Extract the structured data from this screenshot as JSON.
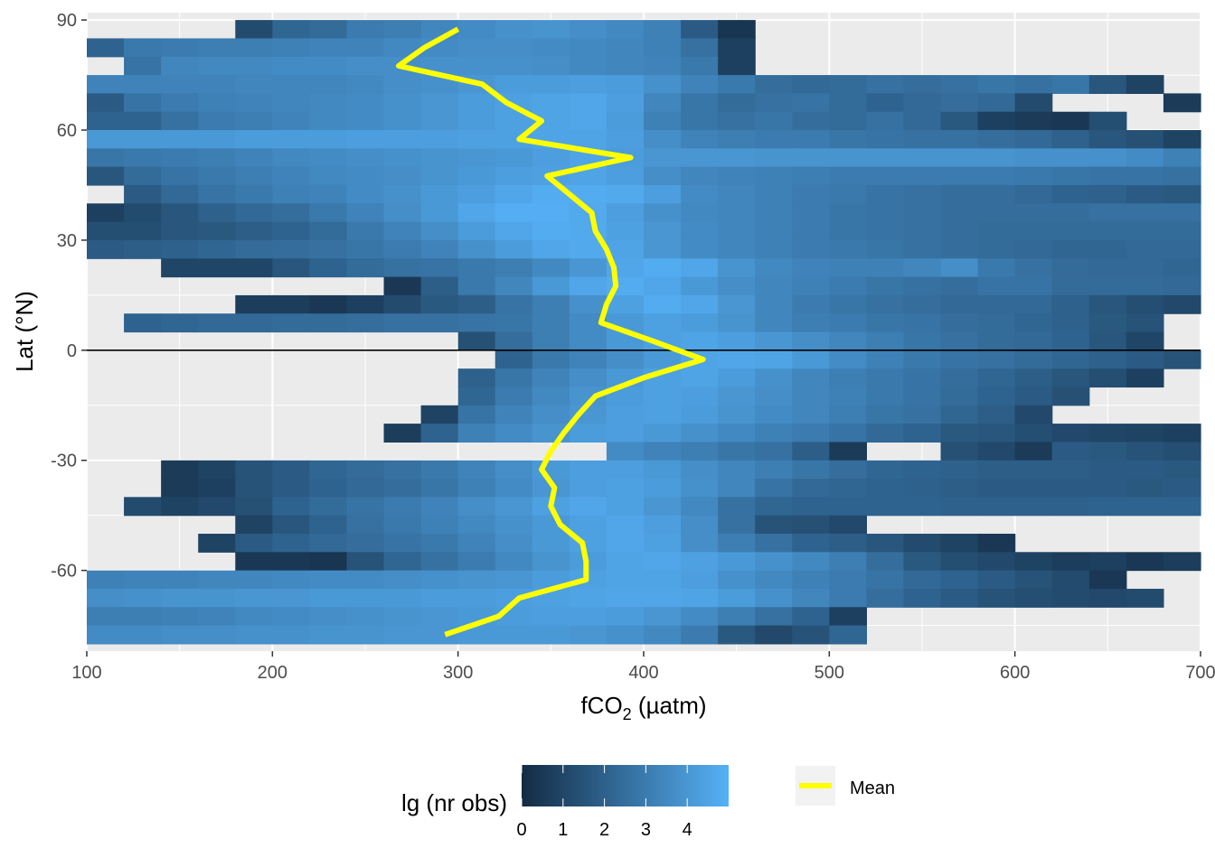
{
  "chart_data": {
    "type": "heatmap",
    "xlabel": "fCO",
    "xlabel_sub": "2",
    "xlabel_unit": " (µatm)",
    "ylabel": "Lat (°N)",
    "xlim": [
      100,
      700
    ],
    "ylim": [
      -82,
      92
    ],
    "x_ticks": [
      100,
      200,
      300,
      400,
      500,
      600,
      700
    ],
    "x_tick_labels": [
      "100",
      "200",
      "300",
      "400",
      "500",
      "600",
      "700"
    ],
    "y_ticks": [
      90,
      60,
      30,
      0,
      -30,
      -60
    ],
    "y_tick_labels": [
      "90",
      "60",
      "30",
      "0",
      "-30",
      "-60"
    ],
    "x_bin_start": 100,
    "x_bin_width": 20,
    "lat_bin_width": 5,
    "grid": true,
    "background_color": "#ebebeb",
    "gridline_color": "#ffffff",
    "reference_line": {
      "y": 0,
      "color": "#000000"
    },
    "fill_scale": {
      "title": "lg (nr obs)",
      "low_color": "#132b43",
      "high_color": "#56b1f7",
      "min": 0,
      "max": 5,
      "ticks": [
        0,
        1,
        2,
        3,
        4
      ],
      "tick_labels": [
        "0",
        "1",
        "2",
        "3",
        "4"
      ]
    },
    "mean_series": {
      "name": "Mean",
      "color": "#ffff00",
      "points": [
        {
          "lat": 87.5,
          "fco2": 300
        },
        {
          "lat": 82.5,
          "fco2": 282
        },
        {
          "lat": 77.5,
          "fco2": 268
        },
        {
          "lat": 72.5,
          "fco2": 313
        },
        {
          "lat": 67.5,
          "fco2": 326
        },
        {
          "lat": 62.5,
          "fco2": 345
        },
        {
          "lat": 57.5,
          "fco2": 333
        },
        {
          "lat": 52.5,
          "fco2": 393
        },
        {
          "lat": 47.5,
          "fco2": 348
        },
        {
          "lat": 42.5,
          "fco2": 360
        },
        {
          "lat": 37.5,
          "fco2": 372
        },
        {
          "lat": 32.5,
          "fco2": 374
        },
        {
          "lat": 27.5,
          "fco2": 380
        },
        {
          "lat": 22.5,
          "fco2": 384
        },
        {
          "lat": 17.5,
          "fco2": 385
        },
        {
          "lat": 12.5,
          "fco2": 380
        },
        {
          "lat": 7.5,
          "fco2": 377
        },
        {
          "lat": 2.5,
          "fco2": 405
        },
        {
          "lat": -2.5,
          "fco2": 432
        },
        {
          "lat": -7.5,
          "fco2": 400
        },
        {
          "lat": -12.5,
          "fco2": 374
        },
        {
          "lat": -17.5,
          "fco2": 365
        },
        {
          "lat": -22.5,
          "fco2": 357
        },
        {
          "lat": -27.5,
          "fco2": 350
        },
        {
          "lat": -32.5,
          "fco2": 345
        },
        {
          "lat": -37.5,
          "fco2": 352
        },
        {
          "lat": -42.5,
          "fco2": 350
        },
        {
          "lat": -47.5,
          "fco2": 355
        },
        {
          "lat": -52.5,
          "fco2": 367
        },
        {
          "lat": -57.5,
          "fco2": 369
        },
        {
          "lat": -62.5,
          "fco2": 369
        },
        {
          "lat": -67.5,
          "fco2": 333
        },
        {
          "lat": -72.5,
          "fco2": 322
        },
        {
          "lat": -77.5,
          "fco2": 293
        }
      ]
    },
    "cells_note": "rows: lat band centre, start = first bin start fCO2 (µatm), v = lg(nr obs) per 20-µatm bin, null = empty",
    "rows": [
      {
        "lat": 87.5,
        "start": 180,
        "v": [
          1.2,
          2.2,
          2.4,
          3.0,
          3.1,
          3.4,
          3.6,
          3.8,
          3.9,
          3.7,
          3.5,
          3.2,
          1.8,
          0.4
        ]
      },
      {
        "lat": 82.5,
        "start": 100,
        "v": [
          2.1,
          2.9,
          3.0,
          3.1,
          3.1,
          3.2,
          3.3,
          3.3,
          3.5,
          3.6,
          3.7,
          3.7,
          3.6,
          3.5,
          3.4,
          3.2,
          2.6,
          0.8
        ]
      },
      {
        "lat": 77.5,
        "start": 120,
        "v": [
          2.7,
          3.4,
          3.5,
          3.5,
          3.6,
          3.6,
          3.7,
          3.7,
          3.8,
          3.8,
          3.8,
          3.7,
          3.5,
          3.4,
          3.3,
          2.9,
          0.8
        ]
      },
      {
        "lat": 72.5,
        "start": 100,
        "v": [
          3.3,
          3.3,
          3.3,
          3.3,
          3.4,
          3.4,
          3.4,
          3.5,
          3.7,
          3.8,
          4.0,
          4.2,
          4.2,
          4.3,
          4.2,
          3.8,
          3.3,
          2.9,
          2.5,
          2.3,
          2.4,
          2.6,
          2.5,
          2.6,
          2.8,
          2.6,
          2.8,
          1.6,
          0.9
        ]
      },
      {
        "lat": 67.5,
        "start": 100,
        "v": [
          1.8,
          2.7,
          3.0,
          3.2,
          3.3,
          3.4,
          3.5,
          3.6,
          3.8,
          4.0,
          4.2,
          4.4,
          4.5,
          4.6,
          4.3,
          3.4,
          2.8,
          2.4,
          2.6,
          2.7,
          2.4,
          2.1,
          2.3,
          2.5,
          2.3,
          1.2,
          null,
          null,
          null,
          0.6,
          0.7
        ]
      },
      {
        "lat": 62.5,
        "start": 100,
        "v": [
          2.1,
          2.1,
          2.6,
          3.0,
          3.1,
          3.3,
          3.5,
          3.6,
          3.8,
          4.0,
          4.2,
          4.4,
          4.5,
          4.6,
          4.2,
          3.2,
          2.8,
          2.6,
          2.8,
          2.5,
          2.4,
          2.6,
          2.3,
          1.7,
          0.8,
          0.6,
          0.5,
          1.3
        ]
      },
      {
        "lat": 57.5,
        "start": 100,
        "v": [
          4.1,
          4.1,
          4.1,
          4.1,
          4.2,
          4.2,
          4.2,
          4.3,
          4.3,
          4.3,
          4.4,
          4.4,
          4.5,
          4.5,
          4.3,
          3.7,
          3.3,
          3.1,
          3.0,
          3.0,
          2.8,
          2.7,
          2.6,
          2.6,
          2.5,
          2.3,
          2.0,
          1.6,
          1.4,
          0.9,
          0.6
        ]
      },
      {
        "lat": 52.5,
        "start": 100,
        "v": [
          2.8,
          2.9,
          3.0,
          3.1,
          3.3,
          3.5,
          3.6,
          3.7,
          3.8,
          3.9,
          4.0,
          4.1,
          4.3,
          4.5,
          4.2,
          4.0,
          4.0,
          4.0,
          3.9,
          3.9,
          3.9,
          3.9,
          3.9,
          3.9,
          3.9,
          3.8,
          3.8,
          3.8,
          3.6,
          3.2,
          3.2
        ]
      },
      {
        "lat": 47.5,
        "start": 100,
        "v": [
          1.6,
          2.4,
          2.7,
          2.9,
          3.1,
          3.3,
          3.5,
          3.6,
          3.7,
          3.9,
          4.1,
          4.3,
          4.4,
          4.5,
          4.3,
          3.7,
          3.4,
          3.3,
          3.2,
          3.1,
          3.0,
          3.0,
          3.0,
          3.0,
          3.0,
          2.9,
          2.8,
          2.7,
          2.7,
          2.6,
          2.5
        ]
      },
      {
        "lat": 42.5,
        "start": 120,
        "v": [
          1.8,
          2.3,
          2.7,
          2.9,
          3.2,
          3.3,
          3.6,
          3.8,
          4.1,
          4.3,
          4.6,
          4.8,
          4.8,
          4.7,
          4.3,
          3.6,
          3.4,
          3.2,
          3.0,
          2.9,
          2.7,
          2.6,
          2.5,
          2.5,
          2.3,
          2.1,
          2.0,
          1.8,
          1.7,
          1.5
        ]
      },
      {
        "lat": 37.5,
        "start": 100,
        "v": [
          0.8,
          1.2,
          1.6,
          2.0,
          2.3,
          2.5,
          2.9,
          3.3,
          3.7,
          4.1,
          4.6,
          4.9,
          4.9,
          4.7,
          4.3,
          3.8,
          3.5,
          3.4,
          3.2,
          3.0,
          2.8,
          2.7,
          2.6,
          2.5,
          2.5,
          2.5,
          2.5,
          2.6,
          2.6,
          2.6,
          2.7
        ]
      },
      {
        "lat": 32.5,
        "start": 100,
        "v": [
          1.3,
          1.3,
          1.6,
          1.7,
          1.9,
          2.1,
          2.4,
          2.9,
          3.3,
          3.7,
          4.2,
          4.6,
          4.8,
          4.7,
          4.4,
          4.0,
          3.6,
          3.4,
          3.2,
          3.0,
          2.8,
          2.7,
          2.6,
          2.5,
          2.4,
          2.4,
          2.4,
          2.4,
          2.4,
          2.4,
          2.4
        ]
      },
      {
        "lat": 27.5,
        "start": 100,
        "v": [
          1.8,
          1.9,
          2.0,
          2.2,
          2.4,
          2.5,
          2.6,
          2.8,
          3.0,
          3.3,
          3.8,
          4.2,
          4.6,
          4.7,
          4.5,
          4.0,
          3.6,
          3.4,
          3.2,
          3.0,
          2.9,
          2.8,
          2.6,
          2.5,
          2.4,
          2.3,
          2.2,
          2.2,
          2.3,
          2.3,
          2.2
        ]
      },
      {
        "lat": 22.5,
        "start": 140,
        "v": [
          1.0,
          1.0,
          1.0,
          1.6,
          2.1,
          2.4,
          2.6,
          2.7,
          2.9,
          3.1,
          3.5,
          4.0,
          4.6,
          4.8,
          4.6,
          3.9,
          3.5,
          3.3,
          3.2,
          3.2,
          3.4,
          3.7,
          2.9,
          2.6,
          2.4,
          2.3,
          2.3,
          2.2,
          2.1
        ]
      },
      {
        "lat": 17.5,
        "start": 260,
        "v": [
          0.5,
          1.9,
          2.9,
          3.4,
          4.1,
          4.6,
          4.8,
          4.6,
          4.1,
          3.7,
          3.4,
          3.2,
          3.0,
          2.8,
          2.6,
          2.5,
          2.7,
          2.7,
          2.4,
          2.4,
          2.4,
          2.3
        ]
      },
      {
        "lat": 12.5,
        "start": 180,
        "v": [
          0.7,
          0.7,
          0.5,
          0.8,
          1.2,
          1.7,
          1.9,
          2.7,
          3.1,
          3.8,
          4.4,
          4.8,
          4.6,
          4.0,
          3.4,
          3.0,
          2.8,
          2.6,
          2.5,
          2.3,
          2.3,
          2.3,
          2.0,
          1.6,
          1.3,
          1.1
        ]
      },
      {
        "lat": 7.5,
        "start": 120,
        "v": [
          2.1,
          2.2,
          2.3,
          2.3,
          2.4,
          2.4,
          2.5,
          2.6,
          2.6,
          2.7,
          2.8,
          3.1,
          3.6,
          4.1,
          4.4,
          4.2,
          3.9,
          3.4,
          3.1,
          3.0,
          2.8,
          2.7,
          2.5,
          2.4,
          2.2,
          2.0,
          1.7,
          1.5,
          null,
          0.6
        ]
      },
      {
        "lat": 2.5,
        "start": 300,
        "v": [
          1.4,
          2.5,
          3.1,
          3.6,
          4.1,
          4.4,
          4.5,
          4.3,
          4.0,
          3.7,
          3.4,
          3.1,
          2.8,
          2.6,
          2.4,
          2.3,
          2.1,
          1.6,
          1.0
        ]
      },
      {
        "lat": -2.5,
        "start": 320,
        "v": [
          2.1,
          2.9,
          3.3,
          3.7,
          4.1,
          4.5,
          4.6,
          4.5,
          4.1,
          3.6,
          3.2,
          2.9,
          2.7,
          2.6,
          2.4,
          2.2,
          2.0,
          1.8,
          1.5,
          1.9,
          1.3,
          0.9
        ]
      },
      {
        "lat": -7.5,
        "start": 300,
        "v": [
          2.0,
          2.8,
          3.3,
          3.7,
          4.1,
          4.4,
          4.5,
          4.2,
          3.8,
          3.4,
          3.1,
          2.9,
          2.7,
          2.5,
          2.2,
          1.9,
          1.6,
          1.3,
          0.8
        ]
      },
      {
        "lat": -12.5,
        "start": 300,
        "v": [
          2.2,
          3.0,
          3.5,
          3.9,
          4.2,
          4.4,
          4.3,
          4.0,
          3.7,
          3.4,
          3.2,
          2.9,
          2.7,
          2.4,
          2.1,
          1.8,
          1.4
        ]
      },
      {
        "lat": -17.5,
        "start": 280,
        "v": [
          0.9,
          2.7,
          3.3,
          3.7,
          4.0,
          4.3,
          4.4,
          4.2,
          3.9,
          3.6,
          3.4,
          3.1,
          2.8,
          2.6,
          2.2,
          1.9,
          1.1
        ]
      },
      {
        "lat": -22.5,
        "start": 260,
        "v": [
          0.7,
          2.1,
          3.2,
          3.6,
          3.9,
          4.2,
          4.3,
          4.1,
          3.8,
          3.5,
          3.2,
          3.0,
          2.7,
          2.3,
          2.1,
          1.7,
          1.6,
          1.3,
          1.1,
          1.0,
          0.9,
          0.8,
          0.7
        ]
      },
      {
        "lat": -27.5,
        "start": 380,
        "v": [
          3.6,
          3.3,
          3.1,
          2.8,
          2.6,
          1.9,
          0.6,
          null,
          null,
          1.4,
          1.1,
          0.6,
          1.8,
          1.7,
          1.5,
          1.3,
          1.1,
          1.0,
          0.9,
          0.8,
          0.8,
          0.7,
          0.8,
          0.9,
          0.7,
          0.7
        ]
      },
      {
        "lat": -32.5,
        "start": 140,
        "v": [
          0.6,
          0.9,
          1.5,
          1.8,
          2.2,
          2.4,
          2.6,
          2.9,
          3.3,
          3.7,
          4.1,
          4.3,
          4.3,
          4.1,
          3.7,
          3.4,
          3.1,
          2.8,
          2.5,
          2.2,
          2.1,
          2.0,
          1.9,
          1.9,
          1.9,
          1.8,
          1.8,
          1.7,
          1.7
        ]
      },
      {
        "lat": -37.5,
        "start": 140,
        "v": [
          0.6,
          0.8,
          1.5,
          1.8,
          2.1,
          2.3,
          2.5,
          2.8,
          3.2,
          3.6,
          4.0,
          4.3,
          4.4,
          4.2,
          3.8,
          3.4,
          2.7,
          2.3,
          2.2,
          2.1,
          2.0,
          1.9,
          1.8,
          1.8,
          1.8,
          1.8,
          1.7,
          1.8,
          1.7
        ]
      },
      {
        "lat": -42.5,
        "start": 120,
        "v": [
          1.2,
          0.9,
          1.1,
          1.4,
          2.1,
          2.4,
          2.7,
          3.0,
          3.3,
          3.7,
          4.0,
          4.4,
          4.6,
          4.4,
          4.0,
          3.5,
          2.6,
          2.2,
          2.1,
          2.1,
          2.1,
          2.1,
          2.0,
          2.0,
          2.0,
          2.0,
          2.1,
          2.1,
          2.1,
          2.1
        ]
      },
      {
        "lat": -47.5,
        "start": 180,
        "v": [
          0.9,
          1.6,
          2.1,
          2.6,
          2.9,
          3.2,
          3.5,
          3.8,
          4.1,
          4.4,
          4.6,
          4.3,
          3.7,
          2.6,
          1.5,
          1.4,
          1.1
        ]
      },
      {
        "lat": -52.5,
        "start": 160,
        "v": [
          0.9,
          1.8,
          2.1,
          2.3,
          2.5,
          2.7,
          2.9,
          3.3,
          3.7,
          4.1,
          4.4,
          4.6,
          4.4,
          3.7,
          3.1,
          2.6,
          2.1,
          1.9,
          1.6,
          1.2,
          0.9,
          0.5
        ]
      },
      {
        "lat": -57.5,
        "start": 180,
        "v": [
          0.5,
          0.5,
          0.4,
          1.5,
          2.2,
          2.6,
          3.0,
          3.5,
          3.9,
          4.2,
          4.5,
          4.6,
          4.4,
          4.1,
          3.8,
          3.5,
          3.1,
          2.5,
          1.7,
          1.3,
          1.1,
          0.9,
          0.7,
          0.8,
          0.5,
          0.7,
          0.8
        ]
      },
      {
        "lat": -62.5,
        "start": 100,
        "v": [
          3.2,
          3.3,
          3.3,
          3.4,
          3.4,
          3.5,
          3.6,
          3.6,
          3.7,
          3.8,
          3.9,
          4.0,
          4.2,
          4.4,
          4.5,
          4.5,
          4.3,
          3.8,
          3.5,
          3.2,
          3.0,
          2.7,
          2.3,
          2.1,
          1.8,
          1.5,
          1.2,
          0.5
        ]
      },
      {
        "lat": -67.5,
        "start": 100,
        "v": [
          3.7,
          3.8,
          3.9,
          3.9,
          4.0,
          4.0,
          4.1,
          4.1,
          4.1,
          4.2,
          4.2,
          4.3,
          4.4,
          4.5,
          4.6,
          4.6,
          4.5,
          4.2,
          3.8,
          3.4,
          3.0,
          2.5,
          2.1,
          1.8,
          1.5,
          1.3,
          1.2,
          1.1,
          1.2,
          null,
          1.1
        ]
      },
      {
        "lat": -72.5,
        "start": 100,
        "v": [
          3.1,
          3.1,
          3.2,
          3.3,
          3.5,
          3.6,
          3.7,
          3.8,
          3.9,
          4.0,
          4.1,
          4.2,
          4.3,
          4.3,
          4.2,
          4.0,
          3.6,
          3.1,
          2.6,
          2.1,
          0.8
        ]
      },
      {
        "lat": -77.5,
        "start": 100,
        "v": [
          3.6,
          3.6,
          3.7,
          3.7,
          3.8,
          3.8,
          3.9,
          3.9,
          4.0,
          4.0,
          4.1,
          4.1,
          4.1,
          4.0,
          3.8,
          3.5,
          3.0,
          1.7,
          1.1,
          1.5,
          2.2
        ]
      }
    ]
  },
  "legend": {
    "fill_title": "lg (nr obs)",
    "line_label": "Mean",
    "key_background": "#f2f2f2"
  }
}
